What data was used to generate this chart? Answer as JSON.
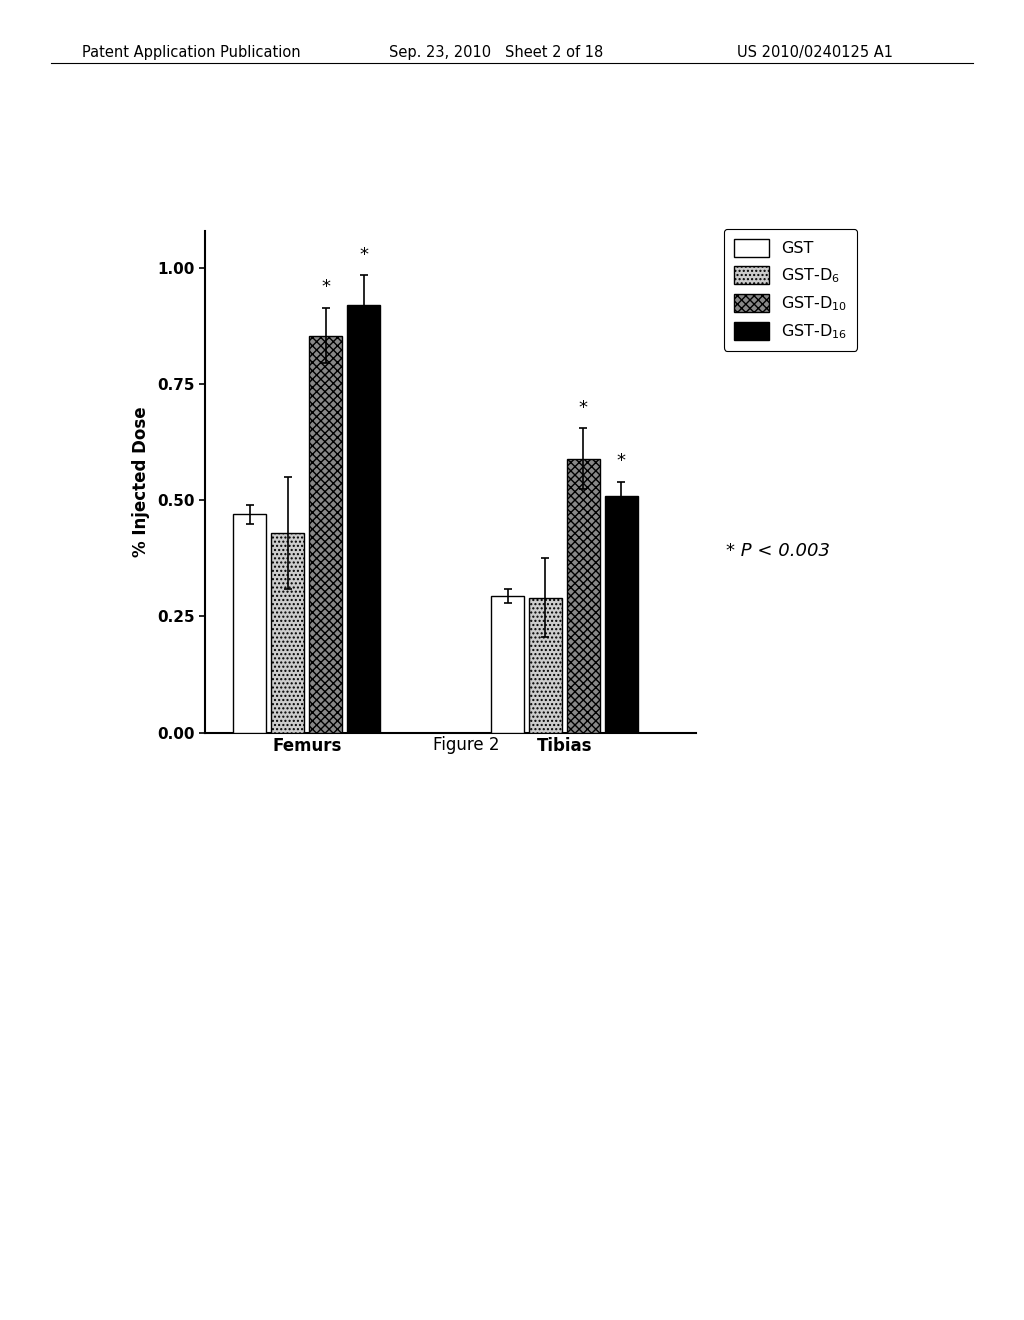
{
  "groups": [
    "Femurs",
    "Tibias"
  ],
  "series": [
    "GST",
    "GST-D6",
    "GST-D10",
    "GST-D16"
  ],
  "values": {
    "Femurs": [
      0.47,
      0.43,
      0.855,
      0.92
    ],
    "Tibias": [
      0.295,
      0.29,
      0.59,
      0.51
    ]
  },
  "errors": {
    "Femurs": [
      0.02,
      0.12,
      0.06,
      0.065
    ],
    "Tibias": [
      0.015,
      0.085,
      0.065,
      0.03
    ]
  },
  "significant": {
    "Femurs": [
      false,
      false,
      true,
      true
    ],
    "Tibias": [
      false,
      false,
      true,
      true
    ]
  },
  "colors": [
    "#ffffff",
    "#cccccc",
    "#888888",
    "#000000"
  ],
  "hatch_patterns": [
    "",
    "....",
    "xxxx",
    ""
  ],
  "ylabel": "% Injected Dose",
  "ylim": [
    0.0,
    1.08
  ],
  "yticks": [
    0.0,
    0.25,
    0.5,
    0.75,
    1.0
  ],
  "ytick_labels": [
    "0.00",
    "0.25",
    "0.50",
    "0.75",
    "1.00"
  ],
  "bar_width": 0.055,
  "significance_text": "* P < 0.003",
  "figure_label": "Figure 2",
  "background_color": "#ffffff",
  "edgecolor": "#000000",
  "header_left": "Patent Application Publication",
  "header_mid": "Sep. 23, 2010   Sheet 2 of 18",
  "header_right": "US 2010/0240125 A1"
}
